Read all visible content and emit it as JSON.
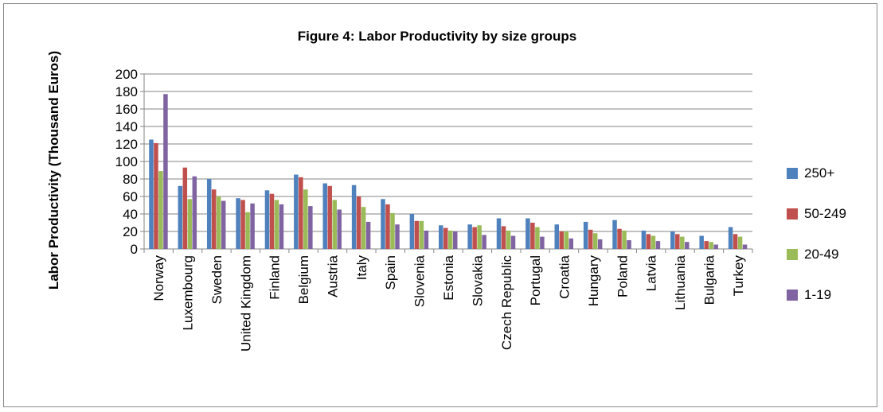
{
  "chart_data": {
    "type": "bar",
    "title": "Figure 4: Labor Productivity by size groups",
    "xlabel": "",
    "ylabel": "Labor Productivity (Thousand Euros)",
    "ylim": [
      0,
      200
    ],
    "ytick_step": 20,
    "grid": true,
    "legend_position": "right",
    "categories": [
      "Norway",
      "Luxembourg",
      "Sweden",
      "United Kingdom",
      "Finland",
      "Belgium",
      "Austria",
      "Italy",
      "Spain",
      "Slovenia",
      "Estonia",
      "Slovakia",
      "Czech Republic",
      "Portugal",
      "Croatia",
      "Hungary",
      "Poland",
      "Latvia",
      "Lithuania",
      "Bulgaria",
      "Turkey"
    ],
    "series": [
      {
        "name": "250+",
        "color": "#4f81bd",
        "values": [
          125,
          72,
          80,
          58,
          67,
          85,
          75,
          73,
          57,
          40,
          27,
          28,
          35,
          35,
          28,
          31,
          33,
          21,
          20,
          15,
          25
        ]
      },
      {
        "name": "50-249",
        "color": "#c0504d",
        "values": [
          121,
          93,
          68,
          56,
          63,
          82,
          72,
          60,
          51,
          32,
          24,
          25,
          26,
          30,
          20,
          22,
          23,
          17,
          17,
          9,
          17
        ]
      },
      {
        "name": "20-49",
        "color": "#9bbb59",
        "values": [
          89,
          57,
          60,
          42,
          56,
          68,
          56,
          48,
          41,
          32,
          21,
          27,
          21,
          25,
          20,
          18,
          21,
          15,
          14,
          8,
          14
        ]
      },
      {
        "name": "1-19",
        "color": "#8064a2",
        "values": [
          177,
          83,
          55,
          52,
          51,
          49,
          45,
          31,
          28,
          21,
          20,
          16,
          15,
          14,
          12,
          11,
          10,
          9,
          8,
          5,
          5
        ]
      }
    ]
  }
}
